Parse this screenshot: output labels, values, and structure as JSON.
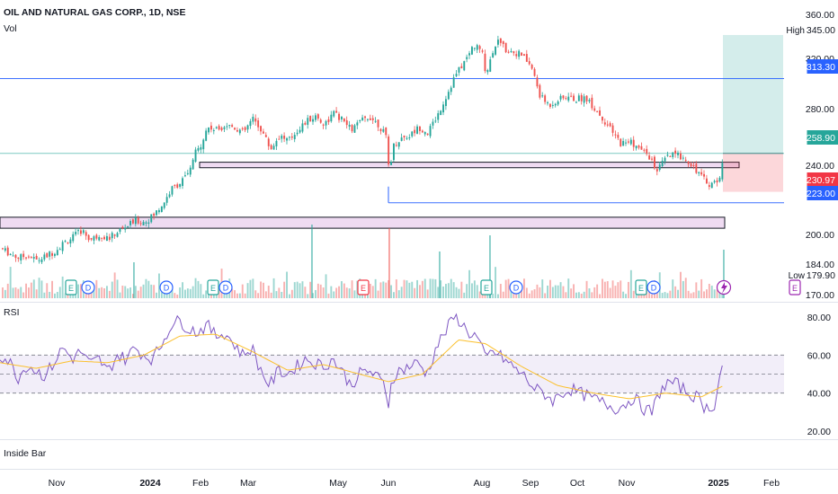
{
  "header": {
    "symbol": "OIL AND NATURAL GAS CORP., 1D, NSE",
    "vol_label": "Vol"
  },
  "price_axis": {
    "ticks": [
      "360.00",
      "320.00",
      "280.00",
      "240.00",
      "200.00",
      "184.00",
      "170.00"
    ],
    "tick_values": [
      360,
      320,
      280,
      240,
      200,
      184,
      170
    ],
    "ticks_note": ""
  },
  "price_badges": [
    {
      "label": "High",
      "text": "345.00",
      "value": 345,
      "bg": "#ffffff",
      "fg": "#131722"
    },
    {
      "label": "",
      "text": "313.30",
      "value": 313.3,
      "bg": "#2962ff",
      "fg": "#ffffff"
    },
    {
      "label": "",
      "text": "258.90",
      "value": 258.9,
      "bg": "#26a69a",
      "fg": "#ffffff"
    },
    {
      "label": "",
      "text": "230.97",
      "value": 230.97,
      "bg": "#f23645",
      "fg": "#ffffff"
    },
    {
      "label": "",
      "text": "223.00",
      "value": 223,
      "bg": "#2962ff",
      "fg": "#ffffff"
    },
    {
      "label": "Low",
      "text": "179.90",
      "value": 179.9,
      "bg": "#ffffff",
      "fg": "#131722"
    }
  ],
  "rsi": {
    "label": "RSI",
    "ticks": [
      "80.00",
      "60.00",
      "40.00",
      "20.00"
    ],
    "tick_values": [
      80,
      60,
      40,
      20
    ],
    "band": [
      40,
      60
    ]
  },
  "footer_label": "Inside Bar",
  "time_axis": {
    "labels": [
      "Nov",
      "2024",
      "Feb",
      "Mar",
      "May",
      "Jun",
      "Aug",
      "Sep",
      "Oct",
      "Nov",
      "2025",
      "Feb"
    ],
    "bold": [
      false,
      true,
      false,
      false,
      false,
      false,
      false,
      false,
      false,
      false,
      true,
      false
    ],
    "positions": [
      63,
      167,
      223,
      276,
      376,
      432,
      536,
      590,
      642,
      697,
      799,
      858
    ]
  },
  "event_markers": [
    "E",
    "D",
    "E",
    "D",
    "D",
    "E",
    "E",
    "D",
    "E",
    "D",
    "E"
  ],
  "chart_data": {
    "type": "candlestick",
    "title": "OIL AND NATURAL GAS CORP., 1D, NSE",
    "price_range": [
      165,
      362
    ],
    "rsi_range": [
      15,
      88
    ],
    "levels": [
      {
        "value": 313.3,
        "color": "#2962ff"
      },
      {
        "value": 258.9,
        "color": "#26a69a"
      },
      {
        "value": 223.0,
        "color": "#2962ff"
      }
    ],
    "zones": [
      {
        "from": 248.5,
        "to": 252.5
      },
      {
        "from": 204.5,
        "to": 212.5
      }
    ],
    "position": {
      "entry": 258.9,
      "target": 345.0,
      "stop": 230.97
    },
    "high": 345.0,
    "low": 179.9,
    "close_series": [
      [
        0,
        190
      ],
      [
        10,
        186
      ],
      [
        20,
        183
      ],
      [
        30,
        185
      ],
      [
        40,
        181
      ],
      [
        50,
        184
      ],
      [
        60,
        188
      ],
      [
        70,
        194
      ],
      [
        80,
        198
      ],
      [
        90,
        203
      ],
      [
        100,
        196
      ],
      [
        110,
        200
      ],
      [
        120,
        197
      ],
      [
        130,
        202
      ],
      [
        140,
        206
      ],
      [
        150,
        210
      ],
      [
        160,
        209
      ],
      [
        170,
        214
      ],
      [
        180,
        222
      ],
      [
        190,
        233
      ],
      [
        200,
        238
      ],
      [
        210,
        245
      ],
      [
        215,
        258
      ],
      [
        220,
        262
      ],
      [
        225,
        270
      ],
      [
        230,
        278
      ],
      [
        240,
        276
      ],
      [
        250,
        280
      ],
      [
        260,
        278
      ],
      [
        270,
        274
      ],
      [
        280,
        284
      ],
      [
        290,
        276
      ],
      [
        300,
        262
      ],
      [
        310,
        272
      ],
      [
        320,
        268
      ],
      [
        330,
        276
      ],
      [
        340,
        282
      ],
      [
        350,
        286
      ],
      [
        360,
        280
      ],
      [
        370,
        288
      ],
      [
        380,
        283
      ],
      [
        390,
        276
      ],
      [
        400,
        282
      ],
      [
        410,
        286
      ],
      [
        420,
        280
      ],
      [
        428,
        272
      ],
      [
        432,
        245
      ],
      [
        436,
        264
      ],
      [
        445,
        270
      ],
      [
        455,
        272
      ],
      [
        465,
        278
      ],
      [
        475,
        274
      ],
      [
        485,
        286
      ],
      [
        495,
        300
      ],
      [
        505,
        315
      ],
      [
        515,
        325
      ],
      [
        520,
        330
      ],
      [
        525,
        337
      ],
      [
        530,
        336
      ],
      [
        535,
        333
      ],
      [
        540,
        316
      ],
      [
        545,
        330
      ],
      [
        550,
        338
      ],
      [
        555,
        342
      ],
      [
        560,
        335
      ],
      [
        570,
        333
      ],
      [
        580,
        330
      ],
      [
        590,
        322
      ],
      [
        600,
        300
      ],
      [
        610,
        294
      ],
      [
        620,
        298
      ],
      [
        630,
        300
      ],
      [
        640,
        298
      ],
      [
        650,
        300
      ],
      [
        660,
        292
      ],
      [
        670,
        284
      ],
      [
        680,
        274
      ],
      [
        690,
        266
      ],
      [
        700,
        268
      ],
      [
        710,
        262
      ],
      [
        720,
        258
      ],
      [
        730,
        246
      ],
      [
        740,
        256
      ],
      [
        750,
        258
      ],
      [
        760,
        256
      ],
      [
        770,
        250
      ],
      [
        780,
        241
      ],
      [
        790,
        236
      ],
      [
        800,
        242
      ],
      [
        805,
        258
      ]
    ],
    "rsi_series": [
      [
        0,
        60
      ],
      [
        10,
        57
      ],
      [
        20,
        48
      ],
      [
        30,
        55
      ],
      [
        40,
        52
      ],
      [
        50,
        49
      ],
      [
        60,
        56
      ],
      [
        70,
        64
      ],
      [
        80,
        58
      ],
      [
        90,
        62
      ],
      [
        100,
        55
      ],
      [
        110,
        58
      ],
      [
        120,
        51
      ],
      [
        130,
        60
      ],
      [
        140,
        58
      ],
      [
        150,
        64
      ],
      [
        160,
        60
      ],
      [
        170,
        58
      ],
      [
        180,
        66
      ],
      [
        190,
        76
      ],
      [
        200,
        78
      ],
      [
        210,
        74
      ],
      [
        220,
        72
      ],
      [
        230,
        76
      ],
      [
        240,
        70
      ],
      [
        250,
        72
      ],
      [
        260,
        66
      ],
      [
        270,
        60
      ],
      [
        280,
        64
      ],
      [
        290,
        52
      ],
      [
        300,
        44
      ],
      [
        310,
        52
      ],
      [
        320,
        50
      ],
      [
        330,
        54
      ],
      [
        340,
        58
      ],
      [
        350,
        56
      ],
      [
        360,
        54
      ],
      [
        370,
        58
      ],
      [
        380,
        52
      ],
      [
        390,
        44
      ],
      [
        400,
        50
      ],
      [
        410,
        52
      ],
      [
        420,
        48
      ],
      [
        428,
        44
      ],
      [
        432,
        34
      ],
      [
        436,
        48
      ],
      [
        445,
        52
      ],
      [
        455,
        54
      ],
      [
        465,
        56
      ],
      [
        475,
        50
      ],
      [
        485,
        64
      ],
      [
        495,
        72
      ],
      [
        505,
        80
      ],
      [
        512,
        78
      ],
      [
        520,
        72
      ],
      [
        530,
        70
      ],
      [
        540,
        58
      ],
      [
        548,
        62
      ],
      [
        555,
        60
      ],
      [
        565,
        56
      ],
      [
        575,
        52
      ],
      [
        585,
        48
      ],
      [
        595,
        42
      ],
      [
        605,
        40
      ],
      [
        615,
        36
      ],
      [
        625,
        40
      ],
      [
        635,
        42
      ],
      [
        645,
        40
      ],
      [
        655,
        38
      ],
      [
        665,
        36
      ],
      [
        675,
        34
      ],
      [
        685,
        32
      ],
      [
        695,
        34
      ],
      [
        705,
        38
      ],
      [
        715,
        32
      ],
      [
        725,
        30
      ],
      [
        735,
        42
      ],
      [
        745,
        46
      ],
      [
        755,
        44
      ],
      [
        765,
        40
      ],
      [
        775,
        38
      ],
      [
        785,
        32
      ],
      [
        795,
        34
      ],
      [
        805,
        60
      ]
    ],
    "rsi_ma_series": [
      [
        0,
        56
      ],
      [
        40,
        53
      ],
      [
        80,
        57
      ],
      [
        120,
        56
      ],
      [
        160,
        60
      ],
      [
        200,
        70
      ],
      [
        240,
        71
      ],
      [
        280,
        62
      ],
      [
        320,
        52
      ],
      [
        360,
        55
      ],
      [
        400,
        50
      ],
      [
        432,
        46
      ],
      [
        470,
        50
      ],
      [
        510,
        68
      ],
      [
        540,
        66
      ],
      [
        580,
        54
      ],
      [
        620,
        44
      ],
      [
        660,
        40
      ],
      [
        700,
        37
      ],
      [
        740,
        40
      ],
      [
        780,
        38
      ],
      [
        805,
        44
      ]
    ]
  }
}
